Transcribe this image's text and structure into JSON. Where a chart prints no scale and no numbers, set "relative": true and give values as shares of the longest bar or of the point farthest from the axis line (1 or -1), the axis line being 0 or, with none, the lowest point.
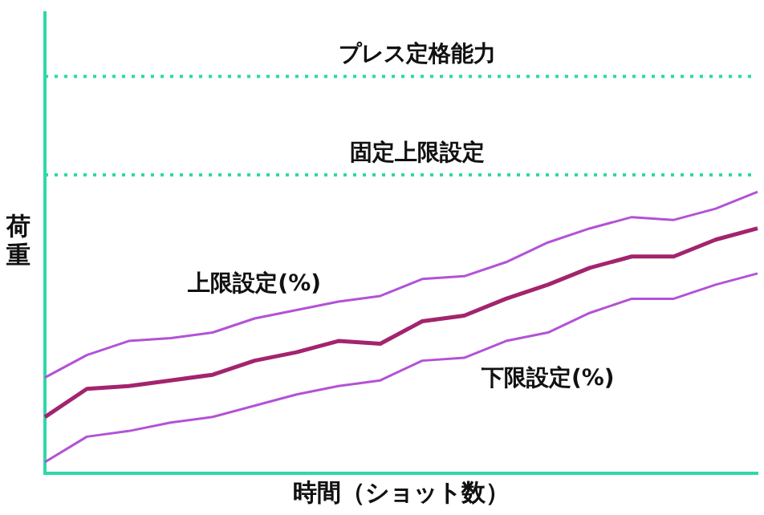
{
  "chart_data": {
    "type": "line",
    "relative": true,
    "xlabel": "時間（ショット数）",
    "ylabel": "荷重",
    "categories": [
      null,
      null,
      null,
      null,
      null,
      null,
      null,
      null,
      null,
      null,
      null,
      null,
      null,
      null,
      null,
      null,
      null,
      null
    ],
    "series": [
      {
        "name": "上限設定(%)",
        "color": "#b352d6",
        "values": [
          0.34,
          0.42,
          0.47,
          0.48,
          0.5,
          0.55,
          0.58,
          0.61,
          0.63,
          0.69,
          0.7,
          0.75,
          0.82,
          0.87,
          0.91,
          0.9,
          0.94,
          1.0
        ]
      },
      {
        "color": "#a3246e",
        "values": [
          0.2,
          0.3,
          0.31,
          0.33,
          0.35,
          0.4,
          0.43,
          0.47,
          0.46,
          0.54,
          0.56,
          0.62,
          0.67,
          0.73,
          0.77,
          0.77,
          0.83,
          0.87
        ]
      },
      {
        "name": "下限設定(%)",
        "color": "#b352d6",
        "values": [
          0.04,
          0.13,
          0.15,
          0.18,
          0.2,
          0.24,
          0.28,
          0.31,
          0.33,
          0.4,
          0.41,
          0.47,
          0.5,
          0.57,
          0.62,
          0.62,
          0.67,
          0.71
        ]
      }
    ],
    "ref_lines": [
      {
        "axis": "y",
        "value": 1.41,
        "label": "プレス定格能力",
        "color": "#2fd8a8",
        "line_style": "dotted"
      },
      {
        "axis": "y",
        "value": 1.06,
        "label": "固定上限設定",
        "color": "#2fd8a8",
        "line_style": "dotted"
      }
    ],
    "grid": false,
    "legend": false,
    "tick_labels": false,
    "marker": "none",
    "line_style": "solid"
  }
}
